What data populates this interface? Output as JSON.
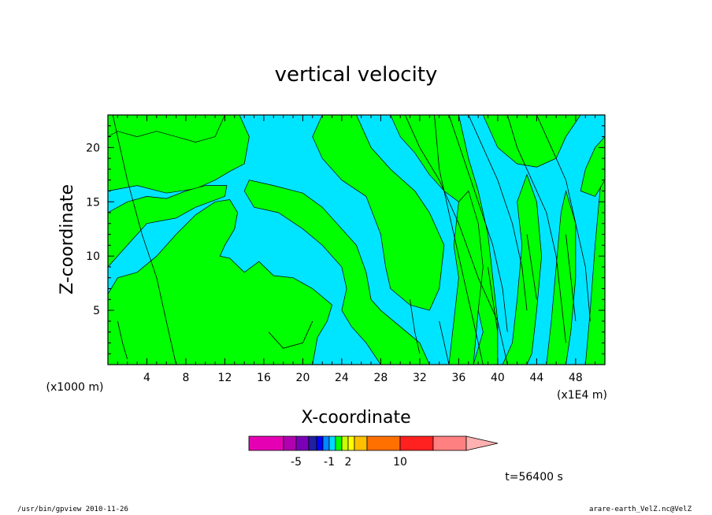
{
  "chart_data": {
    "type": "heatmap",
    "title": "vertical velocity",
    "xlabel": "X-coordinate",
    "ylabel": "Z-coordinate",
    "x_unit_left": "(x1000 m)",
    "x_unit_right": "(x1E4 m)",
    "xlim": [
      0,
      51
    ],
    "ylim": [
      0,
      23
    ],
    "x_ticks": [
      4,
      8,
      12,
      16,
      20,
      24,
      28,
      32,
      36,
      40,
      44,
      48
    ],
    "y_ticks": [
      5,
      10,
      15,
      20
    ],
    "colorbar": {
      "colors": [
        "#e600b4",
        "#b000b0",
        "#7a00b8",
        "#2020a0",
        "#0000ff",
        "#0088ff",
        "#00d8ff",
        "#00ff00",
        "#c8ff00",
        "#ffff00",
        "#ffc000",
        "#ff7000",
        "#ff2020",
        "#ff8080",
        "#ffb0b0"
      ],
      "labels": [
        "-5",
        "-1",
        "2",
        "10"
      ],
      "extend": "right"
    },
    "regions": {
      "colors": {
        "negative": "#00e5ff",
        "positive": "#00ff00"
      },
      "green_polygons": [
        [
          [
            0,
            23
          ],
          [
            0,
            19.5
          ],
          [
            2,
            20
          ],
          [
            4,
            20.5
          ],
          [
            7,
            19.5
          ],
          [
            10,
            18.5
          ],
          [
            12,
            19.2
          ],
          [
            13,
            21
          ],
          [
            13.5,
            23
          ]
        ],
        [
          [
            0,
            16
          ],
          [
            3,
            16.5
          ],
          [
            6,
            15.8
          ],
          [
            9,
            16.2
          ],
          [
            11,
            17
          ],
          [
            12.5,
            17.8
          ],
          [
            14,
            18.5
          ],
          [
            14.5,
            21
          ],
          [
            13.5,
            23
          ],
          [
            12,
            23
          ],
          [
            11,
            21
          ],
          [
            9,
            20.5
          ],
          [
            7,
            21
          ],
          [
            5,
            21.5
          ],
          [
            3,
            21
          ],
          [
            1,
            21.5
          ],
          [
            0,
            21
          ]
        ],
        [
          [
            0,
            9
          ],
          [
            2,
            11
          ],
          [
            4,
            13
          ],
          [
            7,
            13.5
          ],
          [
            9,
            14.5
          ],
          [
            10.5,
            15
          ],
          [
            12,
            15.5
          ],
          [
            12.2,
            16.5
          ],
          [
            10,
            16.5
          ],
          [
            8,
            16
          ],
          [
            6,
            15.3
          ],
          [
            4,
            15.5
          ],
          [
            2,
            15
          ],
          [
            0,
            14
          ]
        ],
        [
          [
            0,
            0
          ],
          [
            0,
            6.5
          ],
          [
            1,
            8
          ],
          [
            3,
            8.5
          ],
          [
            5,
            10
          ],
          [
            7,
            12
          ],
          [
            9,
            13.8
          ],
          [
            11,
            15
          ],
          [
            12.5,
            15.2
          ],
          [
            13.3,
            14
          ],
          [
            13,
            12.5
          ],
          [
            12,
            11
          ],
          [
            11.5,
            10
          ],
          [
            12.5,
            9.8
          ],
          [
            14,
            8.5
          ],
          [
            15.5,
            9.5
          ],
          [
            17,
            8.2
          ],
          [
            19,
            8
          ],
          [
            21,
            7
          ],
          [
            23,
            5.5
          ],
          [
            22.5,
            4
          ],
          [
            21.5,
            2.5
          ],
          [
            21,
            0
          ]
        ],
        [
          [
            14,
            16
          ],
          [
            14.5,
            17
          ],
          [
            17,
            16.5
          ],
          [
            20,
            15.8
          ],
          [
            22,
            14.5
          ],
          [
            24,
            12.5
          ],
          [
            25.5,
            11
          ],
          [
            26.5,
            8.5
          ],
          [
            27,
            6
          ],
          [
            28,
            5
          ],
          [
            30,
            3.5
          ],
          [
            32,
            2
          ],
          [
            33,
            0
          ],
          [
            28,
            0
          ],
          [
            26.5,
            2
          ],
          [
            25,
            3.5
          ],
          [
            24,
            5
          ],
          [
            24.5,
            7
          ],
          [
            24,
            9
          ],
          [
            22,
            11
          ],
          [
            20,
            12.5
          ],
          [
            17.5,
            14
          ],
          [
            15,
            14.5
          ]
        ],
        [
          [
            22,
            23
          ],
          [
            21,
            21
          ],
          [
            22,
            19
          ],
          [
            24,
            17
          ],
          [
            26.5,
            15.5
          ],
          [
            28,
            12
          ],
          [
            28.5,
            9
          ],
          [
            29,
            7
          ],
          [
            31,
            5.5
          ],
          [
            33,
            5
          ],
          [
            34,
            7
          ],
          [
            34.5,
            11
          ],
          [
            33,
            14
          ],
          [
            31.5,
            16
          ],
          [
            29,
            18
          ],
          [
            27,
            20
          ],
          [
            25.5,
            23
          ]
        ],
        [
          [
            29,
            23
          ],
          [
            30,
            21
          ],
          [
            31.5,
            19.5
          ],
          [
            33,
            17.5
          ],
          [
            34.5,
            16
          ],
          [
            36,
            15
          ],
          [
            37,
            12
          ],
          [
            37.5,
            8
          ],
          [
            38,
            5
          ],
          [
            38.5,
            3
          ],
          [
            37.5,
            0
          ],
          [
            40,
            0
          ],
          [
            40,
            4
          ],
          [
            39.5,
            8
          ],
          [
            39,
            12
          ],
          [
            38,
            16
          ],
          [
            37,
            19
          ],
          [
            36,
            23
          ]
        ],
        [
          [
            38.5,
            23
          ],
          [
            40,
            20
          ],
          [
            42,
            18.5
          ],
          [
            44,
            18.2
          ],
          [
            46,
            19
          ],
          [
            47,
            21
          ],
          [
            48.5,
            23
          ]
        ],
        [
          [
            35,
            0
          ],
          [
            35.5,
            4
          ],
          [
            36,
            8
          ],
          [
            35.5,
            11
          ],
          [
            36,
            15
          ],
          [
            37,
            16
          ],
          [
            38,
            13
          ],
          [
            38.5,
            9
          ],
          [
            38,
            5
          ],
          [
            37.5,
            0
          ]
        ],
        [
          [
            40.5,
            0
          ],
          [
            41.5,
            2
          ],
          [
            42,
            6
          ],
          [
            42.5,
            11
          ],
          [
            42,
            15
          ],
          [
            43,
            17.5
          ],
          [
            44,
            15
          ],
          [
            44.5,
            10
          ],
          [
            44,
            5
          ],
          [
            43.5,
            1
          ],
          [
            43,
            0
          ]
        ],
        [
          [
            45,
            0
          ],
          [
            45.5,
            4
          ],
          [
            46,
            9
          ],
          [
            46.5,
            14
          ],
          [
            47,
            16
          ],
          [
            48,
            13
          ],
          [
            48,
            8
          ],
          [
            47.5,
            3
          ],
          [
            47,
            0
          ]
        ],
        [
          [
            49,
            0
          ],
          [
            49.5,
            5
          ],
          [
            50,
            11
          ],
          [
            50.5,
            16
          ],
          [
            51,
            19
          ],
          [
            51,
            0
          ]
        ],
        [
          [
            48.5,
            16
          ],
          [
            49,
            18
          ],
          [
            50,
            20
          ],
          [
            51,
            21
          ],
          [
            51,
            17
          ],
          [
            50,
            15.5
          ]
        ]
      ],
      "contour_lines": [
        [
          [
            0.5,
            23
          ],
          [
            2,
            17
          ],
          [
            3.5,
            12
          ],
          [
            5,
            8
          ],
          [
            6,
            4
          ],
          [
            7,
            0
          ]
        ],
        [
          [
            16.5,
            3
          ],
          [
            18,
            1.5
          ],
          [
            20,
            2
          ],
          [
            21,
            4
          ]
        ],
        [
          [
            33.5,
            23
          ],
          [
            34,
            18
          ],
          [
            35,
            14
          ],
          [
            36,
            10
          ],
          [
            37,
            6
          ],
          [
            38,
            2
          ],
          [
            38.5,
            0
          ]
        ],
        [
          [
            30.5,
            23
          ],
          [
            32,
            20
          ],
          [
            34,
            17
          ],
          [
            36,
            13
          ],
          [
            38,
            8
          ],
          [
            40,
            4
          ],
          [
            41,
            0
          ]
        ],
        [
          [
            35,
            23
          ],
          [
            36.5,
            19
          ],
          [
            38,
            15
          ],
          [
            39.5,
            11
          ],
          [
            40.5,
            7
          ],
          [
            41,
            3
          ]
        ],
        [
          [
            41,
            23
          ],
          [
            42,
            20
          ],
          [
            43.5,
            17
          ],
          [
            45,
            14
          ],
          [
            46,
            10
          ],
          [
            46.5,
            6
          ],
          [
            47,
            2
          ]
        ],
        [
          [
            44,
            23
          ],
          [
            45.5,
            20
          ],
          [
            47,
            17
          ],
          [
            48,
            13
          ],
          [
            49,
            9
          ],
          [
            49.5,
            4
          ]
        ],
        [
          [
            37,
            23
          ],
          [
            38.5,
            20
          ],
          [
            40,
            17
          ],
          [
            41.5,
            13
          ],
          [
            42.5,
            9
          ],
          [
            43,
            5
          ]
        ],
        [
          [
            34,
            4
          ],
          [
            34.5,
            2
          ],
          [
            35,
            0
          ]
        ],
        [
          [
            31,
            6
          ],
          [
            31.5,
            3
          ],
          [
            32,
            1
          ]
        ],
        [
          [
            39,
            9
          ],
          [
            39.5,
            6
          ],
          [
            40,
            3
          ]
        ],
        [
          [
            43,
            12
          ],
          [
            43.5,
            9
          ],
          [
            44,
            6
          ]
        ],
        [
          [
            47,
            12
          ],
          [
            47.5,
            8
          ],
          [
            48,
            4
          ]
        ],
        [
          [
            1,
            4
          ],
          [
            1.5,
            2
          ],
          [
            2,
            0.5
          ]
        ]
      ]
    }
  },
  "time_label": "t=56400 s",
  "footer": {
    "left": "/usr/bin/gpview   2010-11-26",
    "right": "arare-earth_VelZ.nc@VelZ"
  }
}
